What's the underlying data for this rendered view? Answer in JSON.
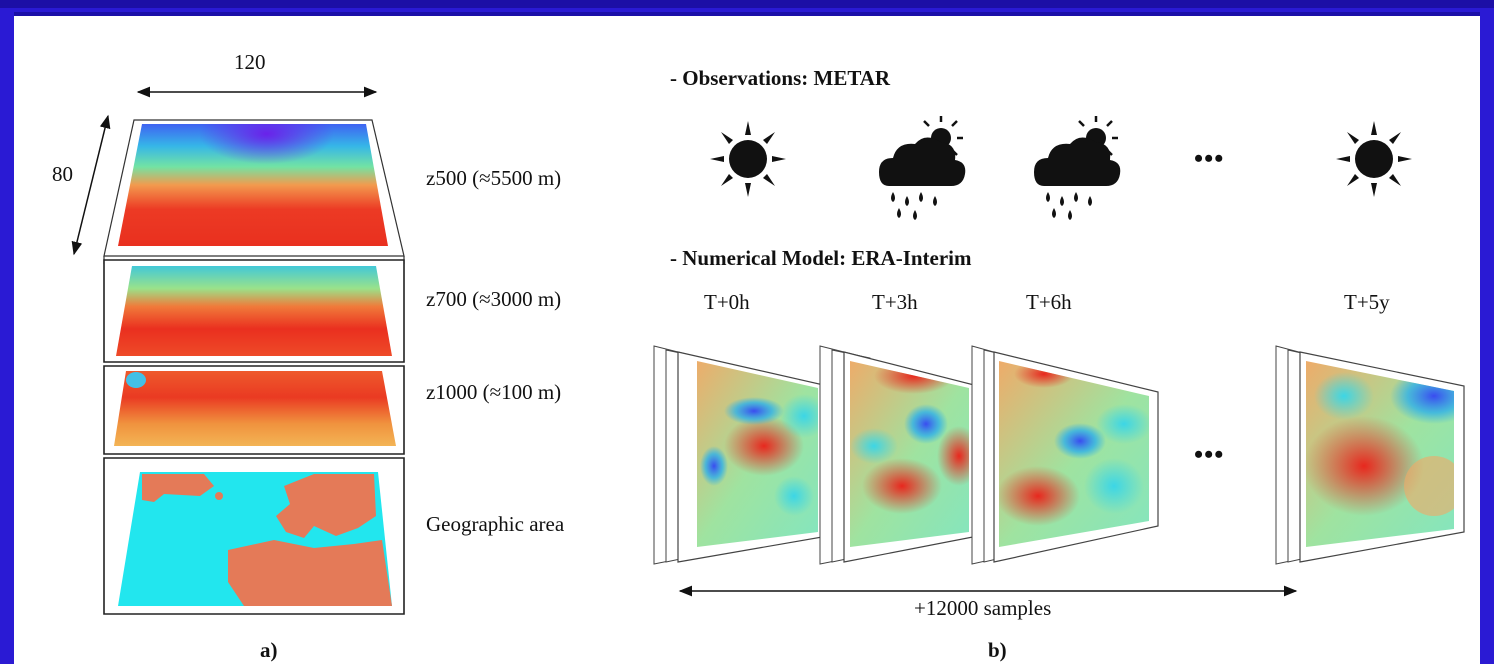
{
  "panel_a": {
    "width_label": "120",
    "height_label": "80",
    "layers": [
      {
        "label": "z500 (≈5500 m)"
      },
      {
        "label": "z700 (≈3000 m)"
      },
      {
        "label": "z1000 (≈100 m)"
      },
      {
        "label": "Geographic area"
      }
    ],
    "caption": "a)"
  },
  "panel_b": {
    "observations_title": "- Observations: METAR",
    "weather_icons": [
      "sun-icon",
      "cloud-rain-sun-icon",
      "cloud-rain-sun-icon",
      "ellipsis",
      "sun-icon"
    ],
    "ellipsis": "•••",
    "model_title": "- Numerical Model: ERA-Interim",
    "time_steps": [
      "T+0h",
      "T+3h",
      "T+6h",
      "T+5y"
    ],
    "samples_label": "+12000 samples",
    "caption": "b)"
  },
  "colors": {
    "slide_background": "#2a1ad4",
    "heat_red": "#e8281e",
    "cold_blue": "#3a5cf0",
    "sea": "#22e6ee",
    "land": "#e47a58"
  }
}
